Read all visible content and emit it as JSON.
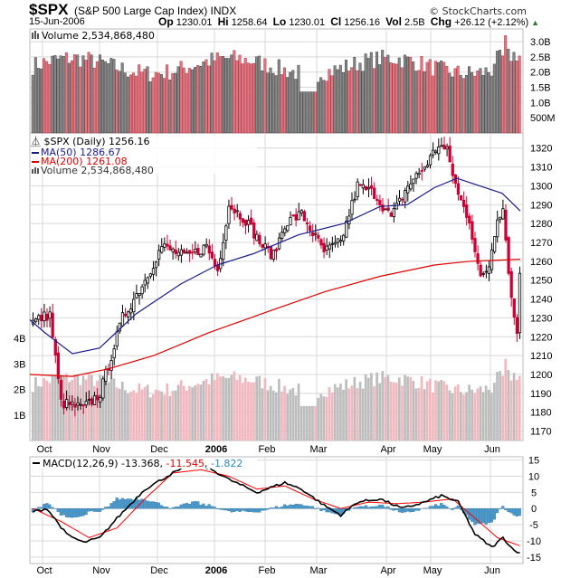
{
  "header": {
    "symbol": "$SPX",
    "name": "(S&P 500 Large Cap Index) INDX",
    "date": "15-Jun-2006",
    "open_label": "Op",
    "open": "1230.01",
    "high_label": "Hi",
    "high": "1258.64",
    "low_label": "Lo",
    "low": "1230.01",
    "close_label": "Cl",
    "close": "1256.16",
    "vol_label": "Vol",
    "vol": "2.5B",
    "chg_label": "Chg",
    "chg": "+26.12 (+2.12%)",
    "chg_direction_icon": "up-triangle-icon",
    "copyright": "© StockCharts.com"
  },
  "colors": {
    "up_candle": "#000000",
    "down_candle": "#cc0033",
    "ma50": "#1a1a8c",
    "ma200": "#e00000",
    "vol_gray": "#777777",
    "vol_red": "#d9606c",
    "macd_line": "#000000",
    "signal_line": "#ff0000",
    "histogram": "#4a9acc",
    "grid": "#d8d8d8"
  },
  "volume_panel": {
    "legend": "Volume 2,534,868,480",
    "y_ticks": [
      "3.0B",
      "2.5B",
      "2.0B",
      "1.5B",
      "1.0B",
      "500M"
    ]
  },
  "price_panel": {
    "legend_title": "$SPX (Daily) 1256.16",
    "legend_ma50": "MA(50) 1286.67",
    "legend_ma200": "MA(200) 1261.08",
    "legend_volume": "Volume 2,534,868,480",
    "y_ticks": [
      "1320",
      "1310",
      "1300",
      "1290",
      "1280",
      "1270",
      "1260",
      "1250",
      "1240",
      "1230",
      "1220",
      "1210",
      "1200",
      "1190",
      "1180",
      "1170"
    ],
    "vol_overlay_ticks": [
      "4B",
      "3B",
      "2B",
      "1B"
    ]
  },
  "macd_panel": {
    "legend_label": "MACD(12,26,9)",
    "macd_value": "-13.368",
    "signal_value": "-11.545",
    "hist_value": "-1.822",
    "y_ticks": [
      "15",
      "10",
      "5",
      "0",
      "-5",
      "-10",
      "-15"
    ]
  },
  "x_axis": {
    "labels": [
      "Oct",
      "Nov",
      "Dec",
      "2006",
      "Feb",
      "Mar",
      "Apr",
      "May",
      "Jun"
    ]
  },
  "chart_data": [
    {
      "type": "bar",
      "title": "Volume",
      "ylabel": "Volume",
      "ylim": [
        0,
        3300000000
      ],
      "note": "Daily volume bars, ~8 months Oct 2005 - Jun 2006, range roughly 1.0B-3.2B; last value 2,534,868,480"
    },
    {
      "type": "line",
      "title": "$SPX (Daily) 1256.16",
      "ylim": [
        1165,
        1328
      ],
      "x": [
        "Oct",
        "Nov",
        "Dec",
        "2006",
        "Feb",
        "Mar",
        "Apr",
        "May",
        "Jun"
      ],
      "series": [
        {
          "name": "$SPX close (approx monthly)",
          "values": [
            1225,
            1205,
            1265,
            1270,
            1265,
            1290,
            1300,
            1315,
            1256
          ]
        },
        {
          "name": "MA(50)",
          "values": [
            1230,
            1212,
            1235,
            1262,
            1276,
            1282,
            1290,
            1305,
            1286.67
          ]
        },
        {
          "name": "MA(200)",
          "values": [
            1200,
            1199,
            1204,
            1215,
            1225,
            1237,
            1248,
            1258,
            1261.08
          ]
        }
      ]
    },
    {
      "type": "line",
      "title": "MACD(12,26,9)",
      "ylim": [
        -17,
        16
      ],
      "x": [
        "Oct",
        "Nov",
        "Dec",
        "2006",
        "Feb",
        "Mar",
        "Apr",
        "May",
        "Jun"
      ],
      "series": [
        {
          "name": "MACD",
          "values": [
            0,
            -10,
            12,
            5,
            -1,
            4,
            1,
            5,
            -13.368
          ]
        },
        {
          "name": "Signal",
          "values": [
            1,
            -7,
            9,
            7,
            0,
            3,
            1,
            3,
            -11.545
          ]
        },
        {
          "name": "Histogram",
          "values": [
            -1,
            -3,
            3,
            -2,
            -1,
            1,
            0,
            2,
            -1.822
          ]
        }
      ]
    }
  ]
}
